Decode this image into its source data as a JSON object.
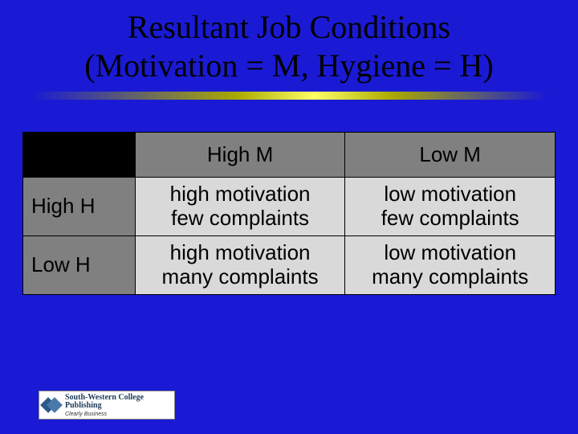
{
  "slide": {
    "background": "#1a1ad4",
    "title_line1": "Resultant Job Conditions",
    "title_line2": "(Motivation = M, Hygiene = H)",
    "title_color": "#000000",
    "title_font": "Times New Roman",
    "title_fontsize": 40
  },
  "gradient_bar": {
    "colors": [
      "#1a1ad4",
      "#aaaa00",
      "#ffff66",
      "#aaaa00",
      "#1a1ad4"
    ]
  },
  "table": {
    "type": "table",
    "corner_bg": "#000000",
    "header_bg": "#808080",
    "cell_bg": "#d9d9d9",
    "border_color": "#000000",
    "text_color": "#000000",
    "fontsize": 26,
    "columns": [
      "High M",
      "Low M"
    ],
    "rows": [
      "High H",
      "Low H"
    ],
    "cells": [
      [
        "high motivation\nfew complaints",
        "low motivation\nfew complaints"
      ],
      [
        "high motivation\nmany complaints",
        "low motivation\nmany complaints"
      ]
    ],
    "col0": {
      "label": "High M"
    },
    "col1": {
      "label": "Low M"
    },
    "row0": {
      "label": "High H",
      "c0l1": "high motivation",
      "c0l2": "few complaints",
      "c1l1": "low motivation",
      "c1l2": "few complaints"
    },
    "row1": {
      "label": "Low H",
      "c0l1": "high motivation",
      "c0l2": "many complaints",
      "c1l1": "low motivation",
      "c1l2": "many complaints"
    }
  },
  "logo": {
    "line1": "South-Western College Publishing",
    "line2": "Clearly Business",
    "mark_colors": [
      "#2a5a8a",
      "#4a7aaa"
    ],
    "bg": "#ffffff"
  }
}
